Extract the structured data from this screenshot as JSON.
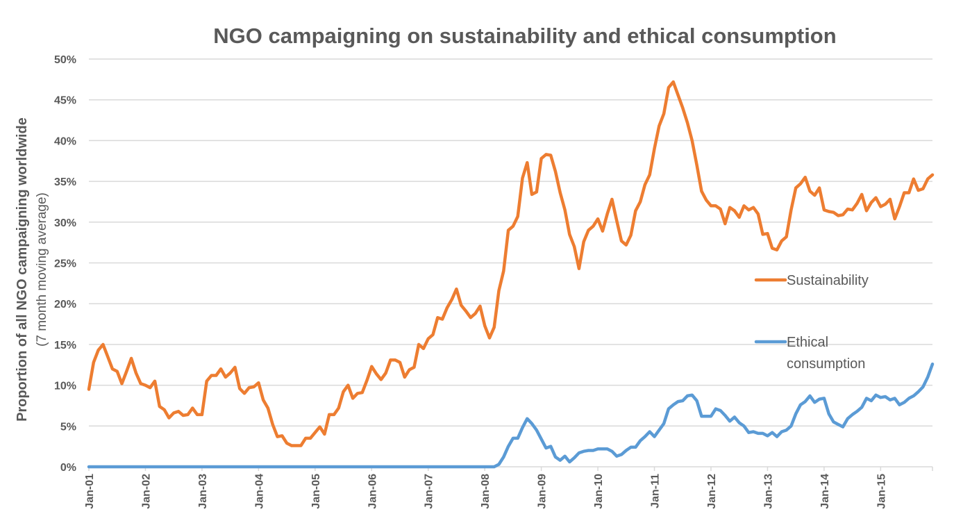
{
  "chart_data": {
    "type": "line",
    "title": "NGO campaigning on sustainability and ethical consumption",
    "ylabel": "Proportion of all NGO campaigning worldwide",
    "ylabel_sub": "(7 month moving average)",
    "xlabel": "",
    "ylim": [
      0,
      50
    ],
    "yticks": [
      "0%",
      "5%",
      "10%",
      "15%",
      "20%",
      "25%",
      "30%",
      "35%",
      "40%",
      "45%",
      "50%"
    ],
    "ytick_values": [
      0,
      5,
      10,
      15,
      20,
      25,
      30,
      35,
      40,
      45,
      50
    ],
    "xticks": [
      "Jan-01",
      "Jan-02",
      "Jan-03",
      "Jan-04",
      "Jan-05",
      "Jan-06",
      "Jan-07",
      "Jan-08",
      "Jan-09",
      "Jan-10",
      "Jan-11",
      "Jan-12",
      "Jan-13",
      "Jan-14",
      "Jan-15"
    ],
    "x_start": "Jan-01",
    "x_frequency": "monthly",
    "grid": true,
    "legend_placement": "right",
    "series": [
      {
        "name": "Sustainability",
        "color": "#ED7D31",
        "values": [
          9.5,
          12.8,
          14.3,
          15.0,
          13.5,
          12.0,
          11.7,
          10.2,
          11.7,
          13.3,
          11.5,
          10.2,
          10.0,
          9.7,
          10.5,
          7.4,
          7.0,
          6.0,
          6.6,
          6.8,
          6.3,
          6.4,
          7.2,
          6.4,
          6.4,
          10.5,
          11.2,
          11.2,
          12.0,
          11.0,
          11.5,
          12.2,
          9.6,
          9.0,
          9.7,
          9.8,
          10.3,
          8.2,
          7.2,
          5.2,
          3.7,
          3.8,
          2.9,
          2.6,
          2.6,
          2.6,
          3.5,
          3.5,
          4.2,
          4.9,
          4.0,
          6.4,
          6.4,
          7.2,
          9.2,
          10.0,
          8.4,
          9.0,
          9.1,
          10.6,
          12.3,
          11.4,
          10.7,
          11.5,
          13.1,
          13.1,
          12.8,
          11.0,
          11.9,
          12.2,
          15.0,
          14.5,
          15.7,
          16.2,
          18.3,
          18.1,
          19.5,
          20.5,
          21.8,
          19.8,
          19.1,
          18.3,
          18.8,
          19.7,
          17.3,
          15.8,
          17.1,
          21.6,
          24.0,
          29.0,
          29.5,
          30.7,
          35.4,
          37.3,
          33.4,
          33.7,
          37.8,
          38.3,
          38.2,
          36.2,
          33.6,
          31.5,
          28.5,
          27.0,
          24.3,
          27.6,
          29.0,
          29.5,
          30.4,
          28.9,
          31.0,
          32.8,
          30.2,
          27.7,
          27.2,
          28.4,
          31.4,
          32.5,
          34.6,
          35.8,
          39.0,
          41.8,
          43.3,
          46.5,
          47.2,
          45.6,
          44.0,
          42.2,
          40.0,
          37.0,
          33.8,
          32.7,
          32.0,
          32.0,
          31.6,
          29.8,
          31.8,
          31.4,
          30.6,
          32.0,
          31.5,
          31.8,
          31.0,
          28.5,
          28.6,
          26.8,
          26.6,
          27.7,
          28.2,
          31.5,
          34.2,
          34.7,
          35.5,
          33.8,
          33.3,
          34.2,
          31.5,
          31.3,
          31.2,
          30.8,
          30.9,
          31.6,
          31.5,
          32.3,
          33.4,
          31.4,
          32.4,
          33.0,
          31.9,
          32.2,
          32.8,
          30.4,
          31.9,
          33.6,
          33.6,
          35.3,
          33.9,
          34.1,
          35.3,
          35.8
        ]
      },
      {
        "name": "Ethical consumption",
        "legend_lines": [
          "Ethical",
          "consumption"
        ],
        "color": "#5B9BD5",
        "values": [
          0,
          0,
          0,
          0,
          0,
          0,
          0,
          0,
          0,
          0,
          0,
          0,
          0,
          0,
          0,
          0,
          0,
          0,
          0,
          0,
          0,
          0,
          0,
          0,
          0,
          0,
          0,
          0,
          0,
          0,
          0,
          0,
          0,
          0,
          0,
          0,
          0,
          0,
          0,
          0,
          0,
          0,
          0,
          0,
          0,
          0,
          0,
          0,
          0,
          0,
          0,
          0,
          0,
          0,
          0,
          0,
          0,
          0,
          0,
          0,
          0,
          0,
          0,
          0,
          0,
          0,
          0,
          0,
          0,
          0,
          0,
          0,
          0,
          0,
          0,
          0,
          0,
          0,
          0,
          0,
          0,
          0,
          0,
          0,
          0,
          0,
          0,
          0.3,
          1.2,
          2.5,
          3.5,
          3.5,
          4.8,
          5.9,
          5.3,
          4.5,
          3.4,
          2.3,
          2.5,
          1.2,
          0.8,
          1.3,
          0.6,
          1.1,
          1.7,
          1.9,
          2.0,
          2.0,
          2.2,
          2.2,
          2.2,
          1.9,
          1.3,
          1.5,
          2.0,
          2.4,
          2.4,
          3.2,
          3.7,
          4.3,
          3.7,
          4.5,
          5.3,
          7.1,
          7.6,
          8.0,
          8.1,
          8.7,
          8.8,
          8.1,
          6.2,
          6.2,
          6.2,
          7.1,
          6.9,
          6.3,
          5.6,
          6.1,
          5.4,
          5.0,
          4.2,
          4.3,
          4.1,
          4.1,
          3.8,
          4.2,
          3.7,
          4.3,
          4.5,
          5.0,
          6.5,
          7.6,
          8.0,
          8.7,
          7.9,
          8.3,
          8.4,
          6.5,
          5.5,
          5.2,
          4.9,
          5.9,
          6.4,
          6.8,
          7.3,
          8.4,
          8.1,
          8.8,
          8.5,
          8.6,
          8.2,
          8.4,
          7.6,
          7.9,
          8.4,
          8.7,
          9.2,
          9.8,
          11.0,
          12.6
        ]
      }
    ]
  }
}
